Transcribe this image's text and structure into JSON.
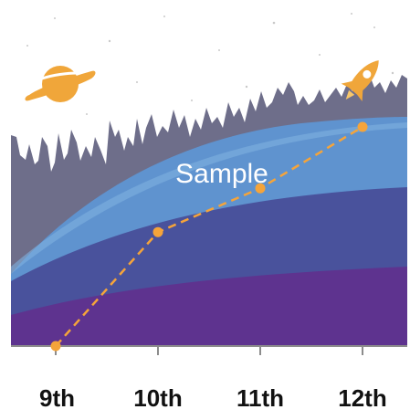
{
  "chart_data": {
    "type": "line",
    "title": "",
    "xlabel": "",
    "ylabel": "",
    "annotation": "Sample",
    "categories": [
      "9th",
      "10th",
      "11th",
      "12th"
    ],
    "series": [
      {
        "values": [
          0,
          52,
          72,
          100
        ]
      }
    ],
    "ylim": [
      0,
      100
    ],
    "grid": false,
    "legend": "none"
  },
  "colors": {
    "line": "#f5a43a",
    "sky": "#ffffff",
    "mountains": "#6e6e8a",
    "band_light": "#5f93cf",
    "band_mid": "#49529c",
    "band_dark": "#5e338f",
    "axis": "#8c8c8c",
    "label": "#111111"
  },
  "icons": {
    "left": "planet-icon",
    "right": "rocket-icon"
  }
}
